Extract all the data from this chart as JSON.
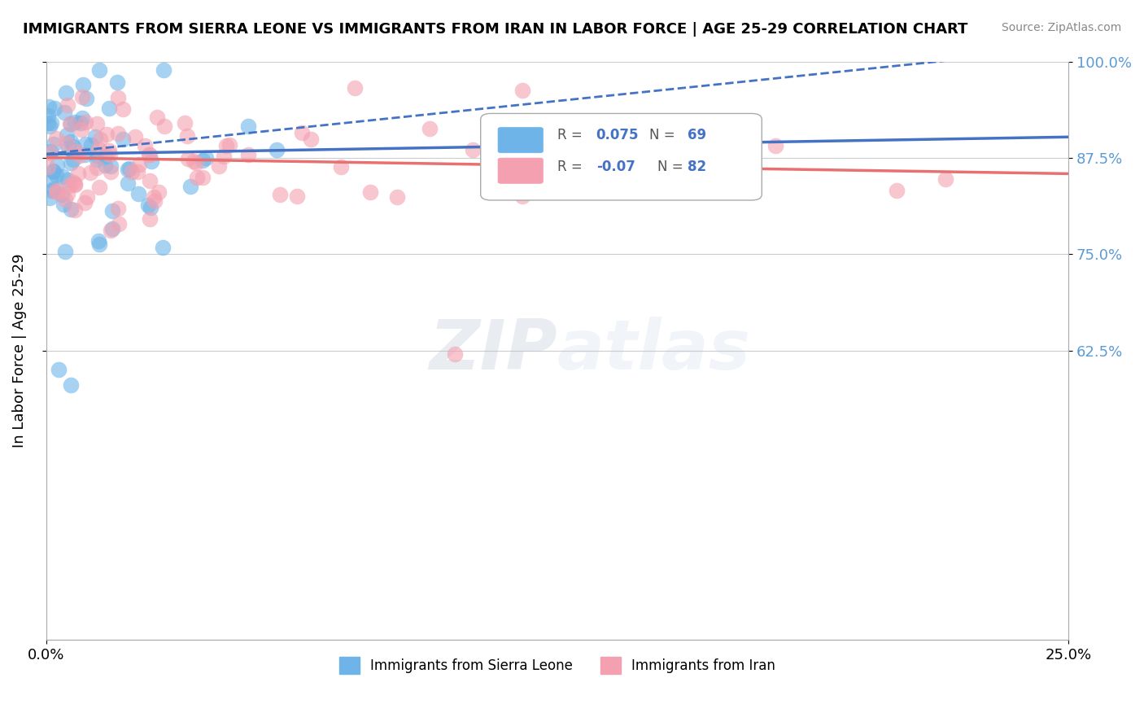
{
  "title": "IMMIGRANTS FROM SIERRA LEONE VS IMMIGRANTS FROM IRAN IN LABOR FORCE | AGE 25-29 CORRELATION CHART",
  "source_text": "Source: ZipAtlas.com",
  "ylabel": "In Labor Force | Age 25-29",
  "legend_label_1": "Immigrants from Sierra Leone",
  "legend_label_2": "Immigrants from Iran",
  "r1": 0.075,
  "n1": 69,
  "r2": -0.07,
  "n2": 82,
  "color_blue": "#6EB4E8",
  "color_pink": "#F4A0B0",
  "color_blue_line": "#4472C4",
  "color_pink_line": "#E87070",
  "xlim": [
    0.0,
    0.25
  ],
  "ylim": [
    0.25,
    1.0
  ],
  "watermark_zip": "ZIP",
  "watermark_atlas": "atlas",
  "background_color": "#FFFFFF",
  "grid_color": "#CCCCCC",
  "right_tick_color": "#5B9BD5"
}
